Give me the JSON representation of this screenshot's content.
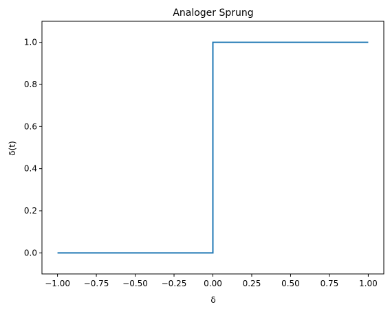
{
  "chart_data": {
    "type": "line",
    "title": "Analoger Sprung",
    "xlabel": "δ",
    "ylabel": "δ(t)",
    "xlim": [
      -1.1,
      1.1
    ],
    "ylim": [
      -0.1,
      1.1
    ],
    "grid": false,
    "x_ticks": [
      -1.0,
      -0.75,
      -0.5,
      -0.25,
      0.0,
      0.25,
      0.5,
      0.75,
      1.0
    ],
    "x_tick_labels": [
      "−1.00",
      "−0.75",
      "−0.50",
      "−0.25",
      "0.00",
      "0.25",
      "0.50",
      "0.75",
      "1.00"
    ],
    "y_ticks": [
      0.0,
      0.2,
      0.4,
      0.6,
      0.8,
      1.0
    ],
    "y_tick_labels": [
      "0.0",
      "0.2",
      "0.4",
      "0.6",
      "0.8",
      "1.0"
    ],
    "series": [
      {
        "color": "#1f77b4",
        "x": [
          -1.0,
          0.0,
          0.0,
          1.0
        ],
        "y": [
          0.0,
          0.0,
          1.0,
          1.0
        ]
      }
    ]
  }
}
